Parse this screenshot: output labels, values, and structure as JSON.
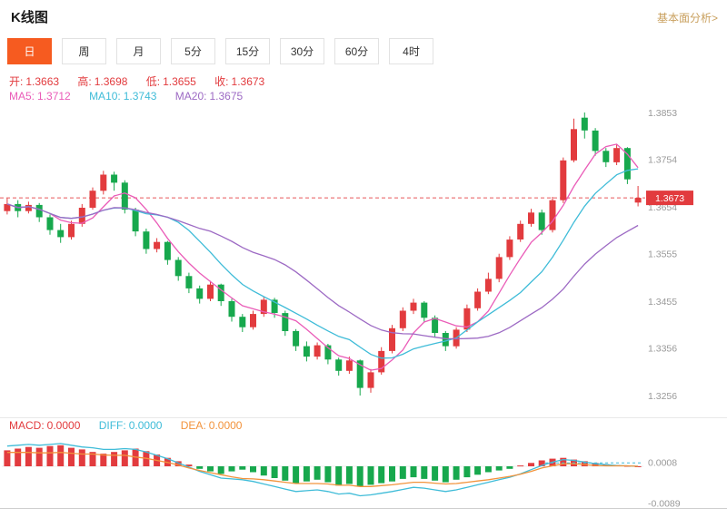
{
  "header": {
    "title": "K线图",
    "link_label": "基本面分析>"
  },
  "tabs": [
    {
      "label": "日",
      "active": true
    },
    {
      "label": "周",
      "active": false
    },
    {
      "label": "月",
      "active": false
    },
    {
      "label": "5分",
      "active": false
    },
    {
      "label": "15分",
      "active": false
    },
    {
      "label": "30分",
      "active": false
    },
    {
      "label": "60分",
      "active": false
    },
    {
      "label": "4时",
      "active": false
    }
  ],
  "indicators": {
    "ohlc": {
      "open_label": "开:",
      "open_value": "1.3663",
      "high_label": "高:",
      "high_value": "1.3698",
      "low_label": "低:",
      "low_value": "1.3655",
      "close_label": "收:",
      "close_value": "1.3673"
    },
    "ma": {
      "ma5_label": "MA5:",
      "ma5_value": "1.3712",
      "ma10_label": "MA10:",
      "ma10_value": "1.3743",
      "ma20_label": "MA20:",
      "ma20_value": "1.3675"
    },
    "macd": {
      "macd_label": "MACD:",
      "macd_value": "0.0000",
      "diff_label": "DIFF:",
      "diff_value": "0.0000",
      "dea_label": "DEA:",
      "dea_value": "0.0000"
    }
  },
  "colors": {
    "up": "#e23b3e",
    "down": "#17a84d",
    "ma5": "#ea5cb8",
    "ma10": "#3fbcd8",
    "ma20": "#9d6ac4",
    "diff": "#3fbcd8",
    "dea": "#f2933c",
    "tab_active_bg": "#f65b20",
    "link_text": "#c9a05e",
    "axis_text": "#999999",
    "price_badge_bg": "#e23b3e"
  },
  "chart_data": [
    {
      "type": "candlestick",
      "timeframe": "日",
      "price_range": [
        1.3256,
        1.3853
      ],
      "current_price": 1.3673,
      "y_axis_ticks": [
        1.3853,
        1.3754,
        1.3654,
        1.3555,
        1.3455,
        1.3356,
        1.3256
      ],
      "ma_periods": [
        5,
        10,
        20
      ],
      "candles": [
        [
          1.3645,
          1.3672,
          1.3638,
          1.366
        ],
        [
          1.366,
          1.3668,
          1.3632,
          1.3645
        ],
        [
          1.3645,
          1.3665,
          1.364,
          1.3658
        ],
        [
          1.3658,
          1.3662,
          1.3622,
          1.3632
        ],
        [
          1.3632,
          1.3638,
          1.3595,
          1.3605
        ],
        [
          1.3605,
          1.3618,
          1.3578,
          1.359
        ],
        [
          1.359,
          1.3625,
          1.3585,
          1.3618
        ],
        [
          1.3618,
          1.366,
          1.3612,
          1.3652
        ],
        [
          1.3652,
          1.3695,
          1.3648,
          1.3688
        ],
        [
          1.3688,
          1.373,
          1.368,
          1.3722
        ],
        [
          1.3722,
          1.3728,
          1.3688,
          1.3705
        ],
        [
          1.3705,
          1.371,
          1.364,
          1.3648
        ],
        [
          1.3648,
          1.3652,
          1.3592,
          1.3602
        ],
        [
          1.3602,
          1.3608,
          1.3555,
          1.3565
        ],
        [
          1.3565,
          1.3588,
          1.3558,
          1.358
        ],
        [
          1.358,
          1.3582,
          1.3532,
          1.3542
        ],
        [
          1.3542,
          1.3548,
          1.3498,
          1.3508
        ],
        [
          1.3508,
          1.3515,
          1.3472,
          1.3482
        ],
        [
          1.3482,
          1.3488,
          1.345,
          1.346
        ],
        [
          1.346,
          1.3498,
          1.3455,
          1.349
        ],
        [
          1.349,
          1.3492,
          1.3445,
          1.3455
        ],
        [
          1.3455,
          1.346,
          1.3412,
          1.3422
        ],
        [
          1.3422,
          1.3428,
          1.339,
          1.34
        ],
        [
          1.34,
          1.3435,
          1.3395,
          1.3428
        ],
        [
          1.3428,
          1.3465,
          1.3422,
          1.3458
        ],
        [
          1.3458,
          1.3462,
          1.342,
          1.343
        ],
        [
          1.343,
          1.3435,
          1.3382,
          1.3392
        ],
        [
          1.3392,
          1.3396,
          1.335,
          1.336
        ],
        [
          1.336,
          1.337,
          1.3328,
          1.3338
        ],
        [
          1.3338,
          1.3368,
          1.3332,
          1.3362
        ],
        [
          1.3362,
          1.3365,
          1.3322,
          1.3332
        ],
        [
          1.3332,
          1.3336,
          1.3298,
          1.3308
        ],
        [
          1.3308,
          1.3338,
          1.3302,
          1.333
        ],
        [
          1.333,
          1.3332,
          1.3256,
          1.3272
        ],
        [
          1.3272,
          1.3312,
          1.3262,
          1.3305
        ],
        [
          1.3305,
          1.3358,
          1.33,
          1.335
        ],
        [
          1.335,
          1.3405,
          1.3345,
          1.3398
        ],
        [
          1.3398,
          1.3442,
          1.3392,
          1.3435
        ],
        [
          1.3435,
          1.346,
          1.3428,
          1.3452
        ],
        [
          1.3452,
          1.3455,
          1.3412,
          1.342
        ],
        [
          1.342,
          1.3425,
          1.3378,
          1.3388
        ],
        [
          1.3388,
          1.3392,
          1.335,
          1.336
        ],
        [
          1.336,
          1.34,
          1.3355,
          1.3395
        ],
        [
          1.3395,
          1.3448,
          1.339,
          1.344
        ],
        [
          1.344,
          1.3482,
          1.3435,
          1.3475
        ],
        [
          1.3475,
          1.3515,
          1.347,
          1.3502
        ],
        [
          1.3502,
          1.3555,
          1.3495,
          1.3548
        ],
        [
          1.3548,
          1.3592,
          1.3542,
          1.3585
        ],
        [
          1.3585,
          1.3625,
          1.358,
          1.3618
        ],
        [
          1.3618,
          1.365,
          1.3612,
          1.3642
        ],
        [
          1.3642,
          1.3648,
          1.3595,
          1.3605
        ],
        [
          1.3605,
          1.3675,
          1.36,
          1.3668
        ],
        [
          1.3668,
          1.3758,
          1.3662,
          1.3752
        ],
        [
          1.3752,
          1.384,
          1.3748,
          1.3818
        ],
        [
          1.3842,
          1.3853,
          1.3798,
          1.3815
        ],
        [
          1.3815,
          1.382,
          1.3762,
          1.3772
        ],
        [
          1.3772,
          1.3778,
          1.3738,
          1.3748
        ],
        [
          1.3748,
          1.3785,
          1.3742,
          1.3778
        ],
        [
          1.3778,
          1.378,
          1.3702,
          1.3712
        ],
        [
          1.3663,
          1.3698,
          1.3655,
          1.3673
        ]
      ]
    },
    {
      "type": "bar",
      "name": "MACD",
      "y_axis_ticks": [
        0.0008,
        -0.0089
      ],
      "hist": [
        0.0038,
        0.0042,
        0.0046,
        0.0044,
        0.0048,
        0.005,
        0.0044,
        0.004,
        0.0034,
        0.003,
        0.0034,
        0.0038,
        0.0042,
        0.0036,
        0.0028,
        0.002,
        0.0012,
        0.0004,
        -0.0006,
        -0.0012,
        -0.0018,
        -0.0012,
        -0.0008,
        -0.0014,
        -0.0022,
        -0.0028,
        -0.0034,
        -0.004,
        -0.0036,
        -0.0032,
        -0.0038,
        -0.0046,
        -0.0042,
        -0.0048,
        -0.0044,
        -0.004,
        -0.0036,
        -0.003,
        -0.0026,
        -0.003,
        -0.0034,
        -0.0038,
        -0.0032,
        -0.0026,
        -0.002,
        -0.0014,
        -0.001,
        -0.0006,
        0.0002,
        0.0008,
        0.0014,
        0.0018,
        0.002,
        0.0016,
        0.0012,
        0.0008,
        0.0005,
        0.0003,
        0.0001,
        0.0
      ],
      "diff_line": [
        0.0048,
        0.005,
        0.0052,
        0.005,
        0.0052,
        0.0054,
        0.005,
        0.0046,
        0.0044,
        0.004,
        0.004,
        0.0042,
        0.004,
        0.0034,
        0.0026,
        0.0018,
        0.0008,
        -0.0002,
        -0.0012,
        -0.002,
        -0.0028,
        -0.003,
        -0.0032,
        -0.0036,
        -0.0042,
        -0.0048,
        -0.0054,
        -0.006,
        -0.0058,
        -0.0056,
        -0.006,
        -0.0066,
        -0.0064,
        -0.007,
        -0.0068,
        -0.0064,
        -0.006,
        -0.0055,
        -0.005,
        -0.0052,
        -0.0056,
        -0.006,
        -0.0056,
        -0.005,
        -0.0044,
        -0.0038,
        -0.0032,
        -0.0026,
        -0.0018,
        -0.0008,
        0.0002,
        0.001,
        0.0016,
        0.0014,
        0.001,
        0.0006,
        0.0004,
        0.0002,
        0.0001,
        0.0
      ],
      "dea_line": [
        0.0033,
        0.0033,
        0.0033,
        0.0032,
        0.0032,
        0.0033,
        0.0031,
        0.0029,
        0.0029,
        0.0027,
        0.0026,
        0.0026,
        0.0022,
        0.0019,
        0.0014,
        0.0009,
        0.0003,
        -0.0004,
        -0.001,
        -0.0015,
        -0.002,
        -0.0025,
        -0.0029,
        -0.003,
        -0.0032,
        -0.0035,
        -0.0038,
        -0.0041,
        -0.0041,
        -0.0041,
        -0.0042,
        -0.0045,
        -0.0045,
        -0.0048,
        -0.0048,
        -0.0046,
        -0.0044,
        -0.0041,
        -0.0038,
        -0.0038,
        -0.004,
        -0.0042,
        -0.0041,
        -0.0038,
        -0.0035,
        -0.0032,
        -0.0028,
        -0.0024,
        -0.0019,
        -0.0012,
        -0.0004,
        0.0001,
        0.0006,
        0.0006,
        0.0004,
        0.0002,
        0.0001,
        0.0001,
        0.0001,
        0.0
      ]
    }
  ]
}
